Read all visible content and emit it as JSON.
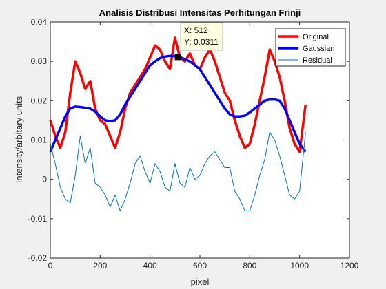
{
  "chart_data": {
    "type": "line",
    "title": "Analisis Distribusi Intensitas Perhitungan Frinji",
    "xlabel": "pixel",
    "ylabel": "Intensity/arbitary units",
    "xlim": [
      0,
      1200
    ],
    "ylim": [
      -0.02,
      0.04
    ],
    "xticks": [
      0,
      200,
      400,
      600,
      800,
      1000,
      1200
    ],
    "xtick_labels": [
      "0",
      "200",
      "400",
      "600",
      "800",
      "1000",
      "1200"
    ],
    "yticks": [
      -0.02,
      -0.01,
      0,
      0.01,
      0.02,
      0.03,
      0.04
    ],
    "ytick_labels": [
      "-0.02",
      "-0.01",
      "0",
      "0.01",
      "0.02",
      "0.03",
      "0.04"
    ],
    "grid": false,
    "legend_position": "top-right",
    "series": [
      {
        "name": "Original",
        "color": "#ff0000",
        "x": [
          0,
          20,
          40,
          60,
          80,
          100,
          120,
          140,
          160,
          180,
          200,
          220,
          240,
          260,
          280,
          300,
          320,
          340,
          360,
          380,
          400,
          420,
          440,
          460,
          480,
          500,
          520,
          540,
          560,
          580,
          600,
          620,
          640,
          660,
          680,
          700,
          720,
          740,
          760,
          780,
          800,
          820,
          840,
          860,
          880,
          900,
          920,
          940,
          960,
          980,
          1000,
          1024
        ],
        "values": [
          0.015,
          0.011,
          0.008,
          0.012,
          0.022,
          0.03,
          0.027,
          0.023,
          0.025,
          0.018,
          0.015,
          0.014,
          0.011,
          0.008,
          0.012,
          0.018,
          0.022,
          0.024,
          0.026,
          0.028,
          0.031,
          0.034,
          0.033,
          0.03,
          0.028,
          0.036,
          0.031,
          0.03,
          0.032,
          0.029,
          0.028,
          0.031,
          0.033,
          0.03,
          0.026,
          0.022,
          0.02,
          0.015,
          0.011,
          0.008,
          0.009,
          0.014,
          0.02,
          0.026,
          0.033,
          0.03,
          0.026,
          0.02,
          0.013,
          0.009,
          0.007,
          0.019
        ]
      },
      {
        "name": "Gaussian",
        "color": "#0000ff",
        "x": [
          0,
          20,
          40,
          60,
          80,
          100,
          120,
          140,
          160,
          180,
          200,
          220,
          240,
          260,
          280,
          300,
          320,
          340,
          360,
          380,
          400,
          420,
          440,
          460,
          480,
          500,
          520,
          540,
          560,
          580,
          600,
          620,
          640,
          660,
          680,
          700,
          720,
          740,
          760,
          780,
          800,
          820,
          840,
          860,
          880,
          900,
          920,
          940,
          960,
          980,
          1000,
          1024
        ],
        "values": [
          0.007,
          0.01,
          0.013,
          0.016,
          0.018,
          0.0185,
          0.0184,
          0.0182,
          0.018,
          0.0172,
          0.016,
          0.015,
          0.0148,
          0.015,
          0.0165,
          0.019,
          0.021,
          0.023,
          0.025,
          0.027,
          0.029,
          0.03,
          0.0308,
          0.0312,
          0.0314,
          0.0313,
          0.0311,
          0.0305,
          0.03,
          0.029,
          0.028,
          0.026,
          0.024,
          0.022,
          0.02,
          0.018,
          0.0165,
          0.016,
          0.016,
          0.0162,
          0.017,
          0.018,
          0.019,
          0.02,
          0.0203,
          0.0203,
          0.02,
          0.018,
          0.015,
          0.012,
          0.009,
          0.007
        ]
      },
      {
        "name": "Residual",
        "color": "#0072bd",
        "x": [
          0,
          20,
          40,
          60,
          80,
          100,
          120,
          140,
          160,
          180,
          200,
          220,
          240,
          260,
          280,
          300,
          320,
          340,
          360,
          380,
          400,
          420,
          440,
          460,
          480,
          500,
          520,
          540,
          560,
          580,
          600,
          620,
          640,
          660,
          680,
          700,
          720,
          740,
          760,
          780,
          800,
          820,
          840,
          860,
          880,
          900,
          920,
          940,
          960,
          980,
          1000,
          1024
        ],
        "values": [
          0.009,
          0.004,
          -0.002,
          -0.005,
          -0.006,
          0.001,
          0.011,
          0.004,
          0.008,
          -0.001,
          -0.002,
          -0.004,
          -0.007,
          -0.004,
          -0.008,
          -0.005,
          -0.001,
          0.004,
          0.006,
          0.002,
          -0.001,
          0.004,
          0.002,
          -0.002,
          -0.003,
          0.004,
          -0.001,
          -0.002,
          0.003,
          0.0,
          0.001,
          0.004,
          0.006,
          0.007,
          0.005,
          0.003,
          0.003,
          -0.003,
          -0.005,
          -0.008,
          -0.008,
          -0.004,
          0.001,
          0.005,
          0.012,
          0.01,
          0.006,
          0.001,
          -0.004,
          -0.005,
          -0.003,
          0.012
        ]
      }
    ],
    "annotations": [
      {
        "type": "datatip",
        "x": 512,
        "y": 0.0311,
        "lines": [
          "X: 512",
          "Y: 0.0311"
        ]
      }
    ]
  }
}
